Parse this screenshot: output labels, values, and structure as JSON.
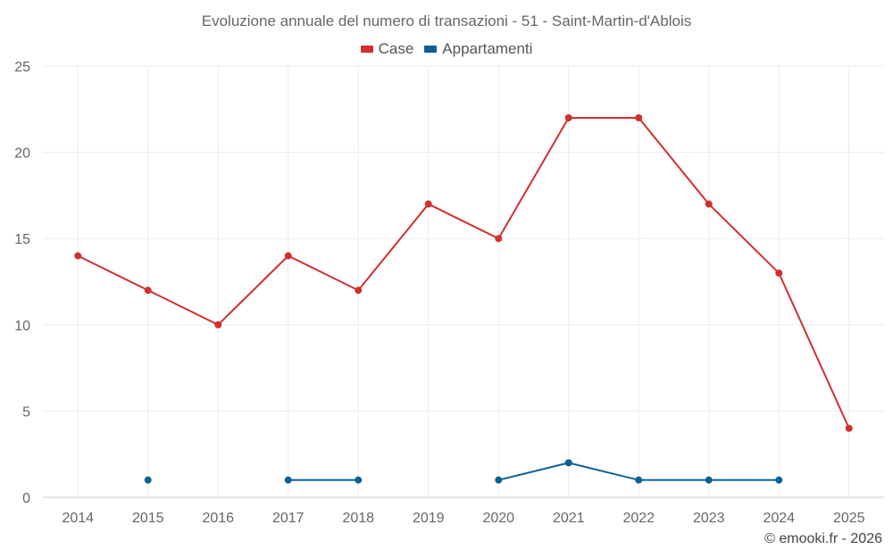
{
  "chart_data": {
    "type": "line",
    "title": "Evoluzione annuale del numero di transazioni - 51 - Saint-Martin-d'Ablois",
    "categories": [
      "2014",
      "2015",
      "2016",
      "2017",
      "2018",
      "2019",
      "2020",
      "2021",
      "2022",
      "2023",
      "2024",
      "2025"
    ],
    "series": [
      {
        "name": "Case",
        "color": "#d32f2f",
        "values": [
          14,
          12,
          10,
          14,
          12,
          17,
          15,
          22,
          22,
          17,
          13,
          4
        ]
      },
      {
        "name": "Appartamenti",
        "color": "#0d5f96",
        "values": [
          null,
          1,
          null,
          1,
          1,
          null,
          1,
          2,
          1,
          1,
          1,
          null
        ]
      }
    ],
    "ylim": [
      0,
      25
    ],
    "yticks": [
      "0",
      "5",
      "10",
      "15",
      "20",
      "25"
    ],
    "grid": true,
    "legend_position": "top-center",
    "xlabel": "",
    "ylabel": ""
  },
  "credit": "© emooki.fr - 2026"
}
